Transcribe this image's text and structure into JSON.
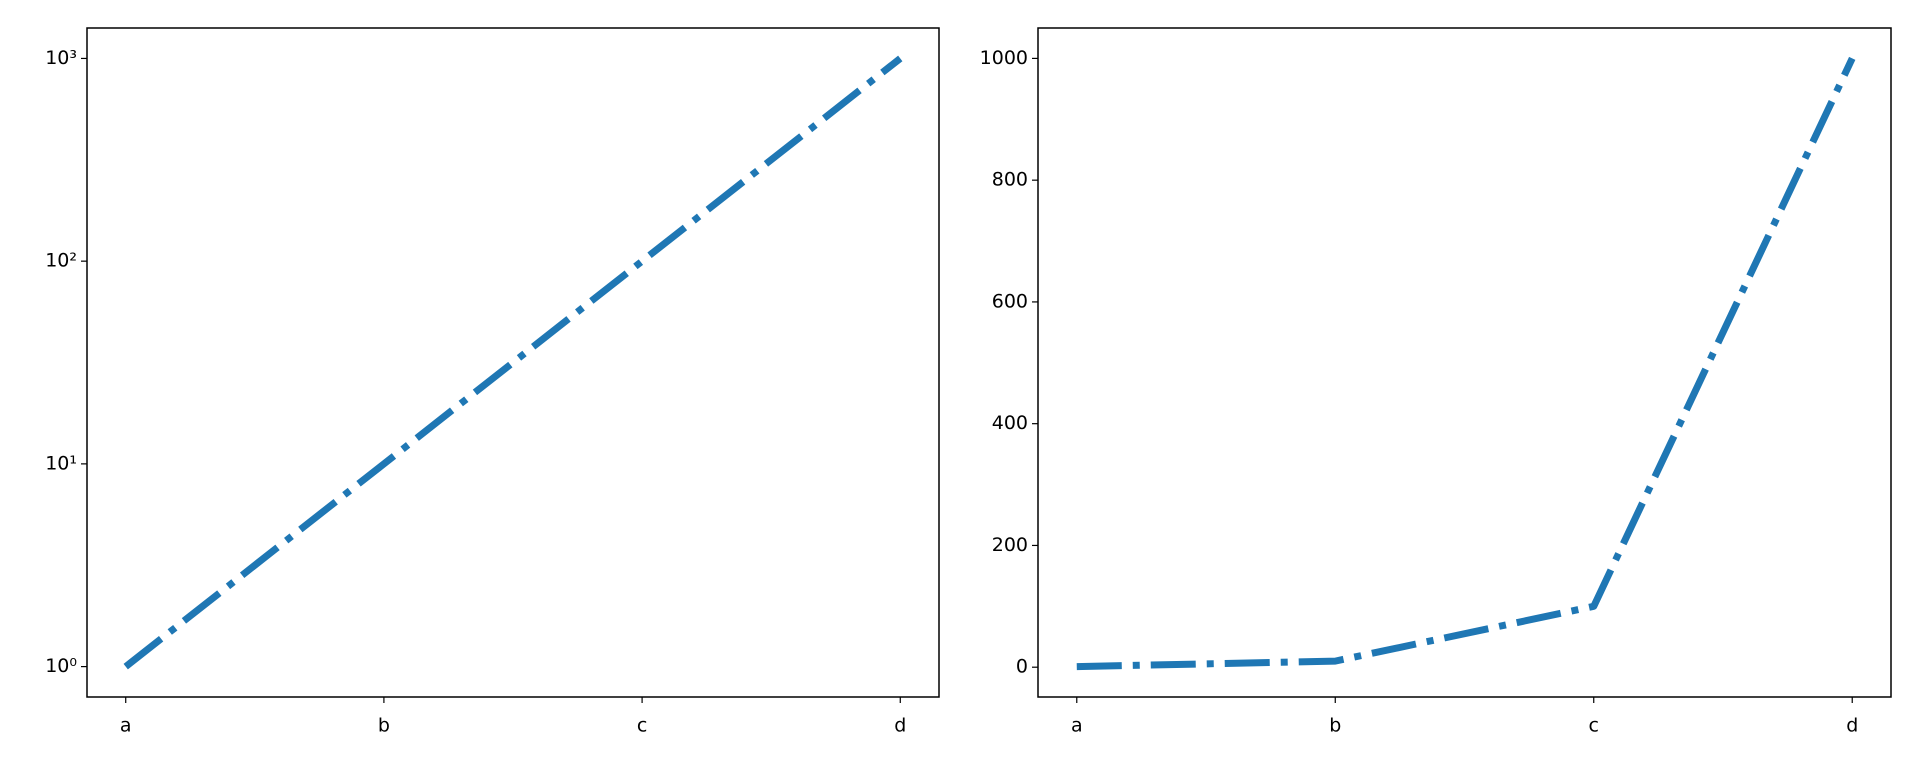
{
  "chart_data": [
    {
      "type": "line",
      "categories": [
        "a",
        "b",
        "c",
        "d"
      ],
      "values": [
        1,
        10,
        100,
        1000
      ],
      "color": "#1f77b4",
      "linestyle": "dashdot",
      "yscale": "log",
      "ylim": [
        0.708,
        1413
      ],
      "yticks": [
        {
          "value": 1,
          "label": "10⁰"
        },
        {
          "value": 10,
          "label": "10¹"
        },
        {
          "value": 100,
          "label": "10²"
        },
        {
          "value": 1000,
          "label": "10³"
        }
      ],
      "grid": false
    },
    {
      "type": "line",
      "categories": [
        "a",
        "b",
        "c",
        "d"
      ],
      "values": [
        1,
        10,
        100,
        1000
      ],
      "color": "#1f77b4",
      "linestyle": "dashdot",
      "yscale": "linear",
      "ylim": [
        -48.95,
        1049.95
      ],
      "yticks": [
        0,
        200,
        400,
        600,
        800,
        1000
      ],
      "grid": false
    }
  ]
}
